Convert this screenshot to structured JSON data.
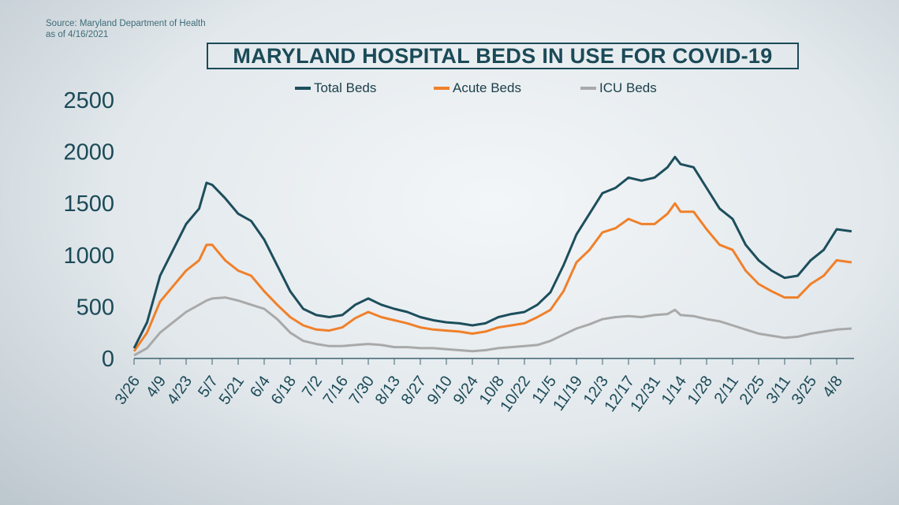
{
  "source": {
    "line1": "Source: Maryland Department of Health",
    "line2": "as of 4/16/2021"
  },
  "chart_data": {
    "type": "line",
    "title": "MARYLAND HOSPITAL BEDS IN USE FOR COVID-19",
    "xlabel": "",
    "ylabel": "",
    "ylim": [
      0,
      2500
    ],
    "y_ticks": [
      "0",
      "500",
      "1000",
      "1500",
      "2000",
      "2500"
    ],
    "x_ticks": [
      "3/26",
      "4/9",
      "4/23",
      "5/7",
      "5/21",
      "6/4",
      "6/18",
      "7/2",
      "7/16",
      "7/30",
      "8/13",
      "8/27",
      "9/10",
      "9/24",
      "10/8",
      "10/22",
      "11/5",
      "11/19",
      "12/3",
      "12/17",
      "12/31",
      "1/14",
      "1/28",
      "2/11",
      "2/25",
      "3/11",
      "3/25",
      "4/8"
    ],
    "grid": false,
    "legend_position": "top",
    "x": [
      "2020-03-26",
      "2020-04-02",
      "2020-04-09",
      "2020-04-16",
      "2020-04-23",
      "2020-04-30",
      "2020-05-04",
      "2020-05-07",
      "2020-05-14",
      "2020-05-21",
      "2020-05-28",
      "2020-06-04",
      "2020-06-11",
      "2020-06-18",
      "2020-06-25",
      "2020-07-02",
      "2020-07-09",
      "2020-07-16",
      "2020-07-23",
      "2020-07-30",
      "2020-08-06",
      "2020-08-13",
      "2020-08-20",
      "2020-08-27",
      "2020-09-03",
      "2020-09-10",
      "2020-09-17",
      "2020-09-24",
      "2020-10-01",
      "2020-10-08",
      "2020-10-15",
      "2020-10-22",
      "2020-10-29",
      "2020-11-05",
      "2020-11-12",
      "2020-11-19",
      "2020-11-26",
      "2020-12-03",
      "2020-12-10",
      "2020-12-17",
      "2020-12-24",
      "2020-12-31",
      "2021-01-07",
      "2021-01-11",
      "2021-01-14",
      "2021-01-21",
      "2021-01-28",
      "2021-02-04",
      "2021-02-11",
      "2021-02-18",
      "2021-02-25",
      "2021-03-04",
      "2021-03-11",
      "2021-03-18",
      "2021-03-25",
      "2021-04-01",
      "2021-04-08",
      "2021-04-16"
    ],
    "series": [
      {
        "name": "Total Beds",
        "color": "#1d4e5c",
        "values": [
          100,
          350,
          800,
          1050,
          1300,
          1450,
          1700,
          1680,
          1550,
          1400,
          1330,
          1150,
          900,
          650,
          480,
          420,
          400,
          420,
          520,
          580,
          520,
          480,
          450,
          400,
          370,
          350,
          340,
          320,
          340,
          400,
          430,
          450,
          520,
          640,
          900,
          1200,
          1400,
          1600,
          1650,
          1750,
          1720,
          1750,
          1850,
          1950,
          1880,
          1850,
          1650,
          1450,
          1350,
          1100,
          950,
          850,
          780,
          800,
          950,
          1050,
          1250,
          1230
        ]
      },
      {
        "name": "Acute Beds",
        "color": "#f0802a",
        "values": [
          70,
          250,
          550,
          700,
          850,
          950,
          1100,
          1100,
          950,
          850,
          800,
          650,
          520,
          400,
          320,
          280,
          270,
          300,
          390,
          450,
          400,
          370,
          340,
          300,
          280,
          270,
          260,
          240,
          260,
          300,
          320,
          340,
          400,
          470,
          650,
          930,
          1050,
          1220,
          1260,
          1350,
          1300,
          1300,
          1400,
          1500,
          1420,
          1420,
          1250,
          1100,
          1050,
          850,
          720,
          650,
          590,
          590,
          720,
          800,
          950,
          930
        ]
      },
      {
        "name": "ICU Beds",
        "color": "#a9a9a9",
        "values": [
          30,
          100,
          250,
          350,
          450,
          520,
          560,
          580,
          590,
          560,
          520,
          480,
          380,
          250,
          170,
          140,
          120,
          120,
          130,
          140,
          130,
          110,
          110,
          100,
          100,
          90,
          80,
          70,
          80,
          100,
          110,
          120,
          130,
          170,
          230,
          290,
          330,
          380,
          400,
          410,
          400,
          420,
          430,
          470,
          420,
          410,
          380,
          360,
          320,
          280,
          240,
          220,
          200,
          210,
          240,
          260,
          280,
          290
        ]
      }
    ]
  }
}
